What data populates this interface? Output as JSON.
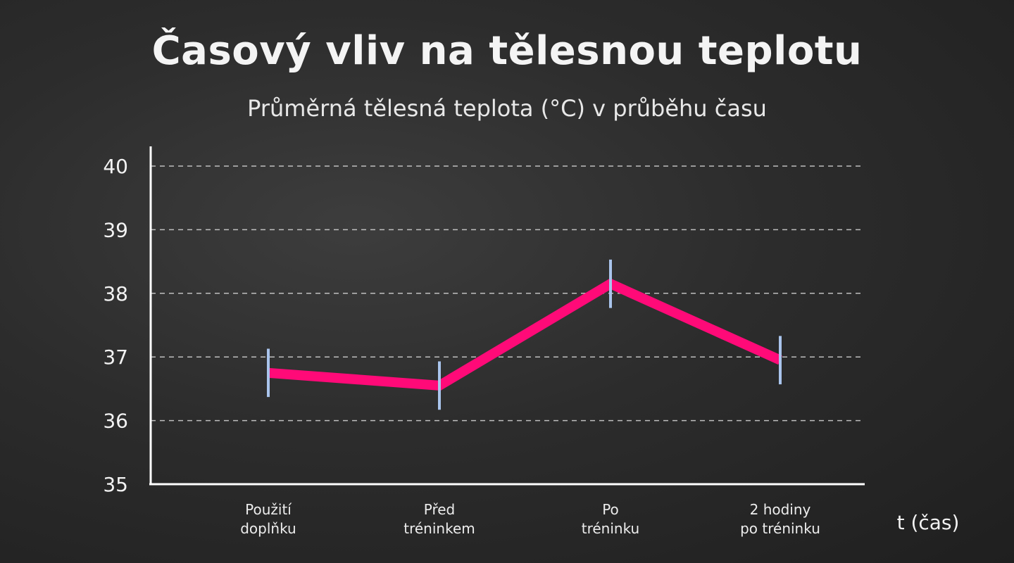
{
  "chart_data": {
    "type": "line",
    "title": "Časový vliv na tělesnou teplotu",
    "subtitle": "Průměrná tělesná teplota (°C) v průběhu času",
    "xlabel": "t (čas)",
    "ylabel": "",
    "ylim": [
      35,
      40
    ],
    "yticks": [
      "35",
      "36",
      "37",
      "38",
      "39",
      "40"
    ],
    "grid": true,
    "categories": [
      [
        "Použití",
        "doplňku"
      ],
      [
        "Před",
        "tréninkem"
      ],
      [
        "Po",
        "tréninku"
      ],
      [
        "2 hodiny",
        "po tréninku"
      ]
    ],
    "series": [
      {
        "values": [
          36.75,
          36.55,
          38.15,
          36.95
        ],
        "error": [
          0.38,
          0.38,
          0.38,
          0.38
        ],
        "color": "#ff0a78"
      }
    ],
    "error_bar_color": "#a9c4ec",
    "gridline_color": "#d8d8d8"
  }
}
